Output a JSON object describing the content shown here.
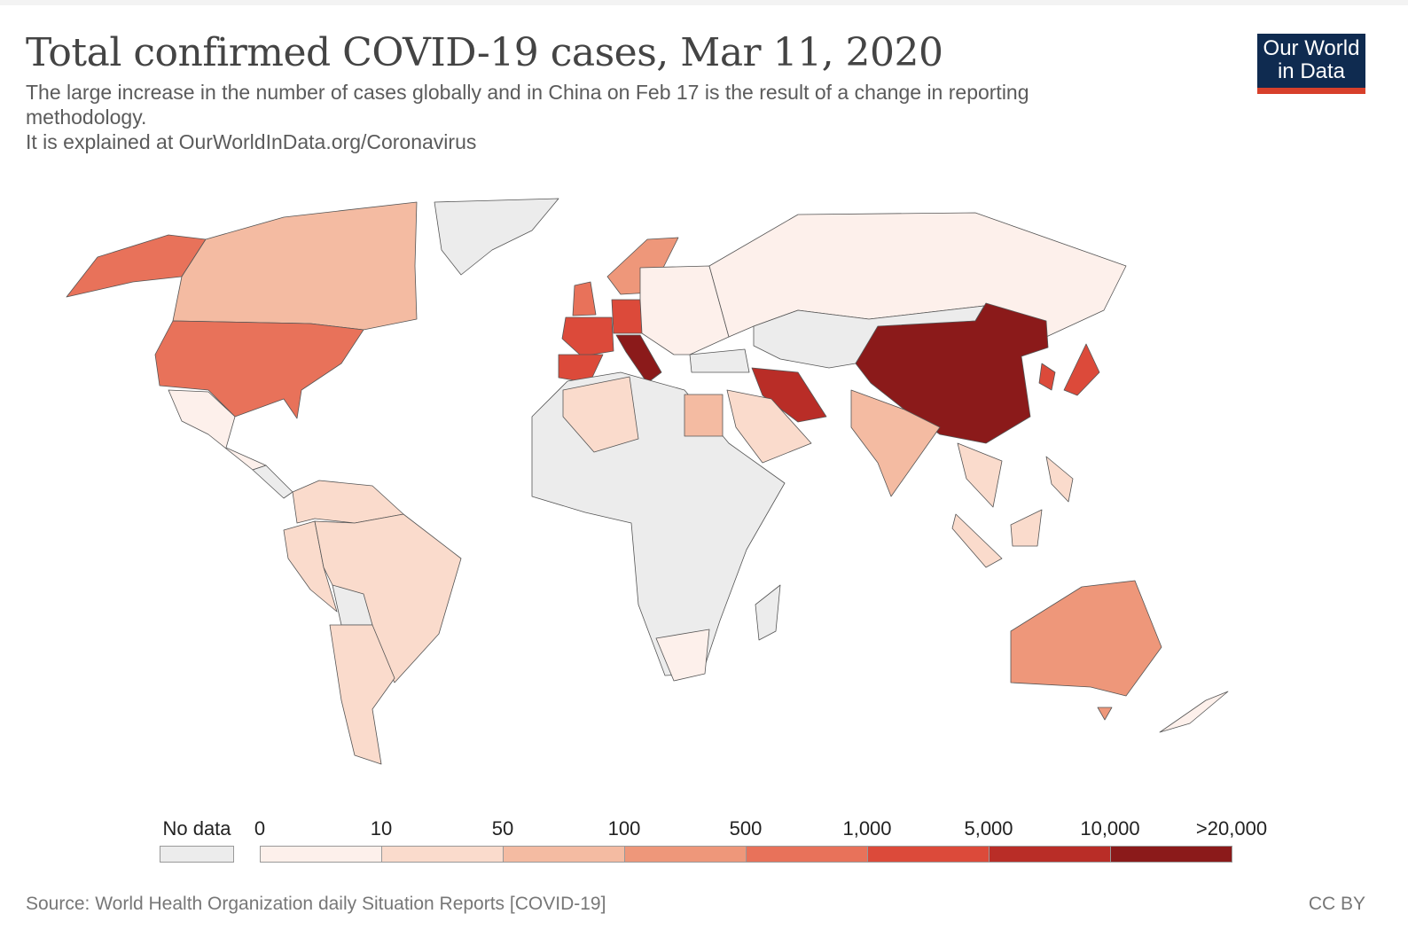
{
  "header": {
    "title": "Total confirmed COVID-19 cases, Mar 11, 2020",
    "subtitle_line1": "The large increase in the number of cases globally and in China on Feb 17 is the result of a change in reporting methodology.",
    "subtitle_line2": "It is explained at OurWorldInData.org/Coronavirus",
    "logo_line1": "Our World",
    "logo_line2": "in Data"
  },
  "legend": {
    "no_data_label": "No data",
    "no_data_color": "#ececec",
    "ticks": [
      "0",
      "10",
      "50",
      "100",
      "500",
      "1,000",
      "5,000",
      "10,000",
      ">20,000"
    ],
    "bin_colors": [
      "#fdf0eb",
      "#fadbcc",
      "#f4bba2",
      "#ee977a",
      "#e8725a",
      "#dc4a3a",
      "#b92d27",
      "#8b1a1a"
    ]
  },
  "map_fills": {
    "greenland": -1,
    "alaska": 4,
    "canada": 2,
    "usa": 4,
    "mexico": 0,
    "central-america": -1,
    "colombia-venezuela": 1,
    "peru": 1,
    "brazil": 1,
    "bolivia": -1,
    "argentina": 1,
    "scandinavia": 3,
    "uk": 4,
    "france": 5,
    "spain": 5,
    "germany": 5,
    "italy": 7,
    "eastern-europe": 0,
    "russia": 0,
    "central-asia": -1,
    "turkey": -1,
    "china": 7,
    "korea": 5,
    "japan": 5,
    "india": 2,
    "iran": 6,
    "arabia": 1,
    "egypt": 2,
    "africa": -1,
    "algeria": 1,
    "south-africa": 0,
    "madagascar": -1,
    "southeast-asia": 1,
    "sumatra": 1,
    "borneo": 1,
    "philippines": 1,
    "australia": 3,
    "tasmania": 3,
    "new-zealand": 0
  },
  "footer": {
    "source": "Source: World Health Organization daily Situation Reports [COVID-19]",
    "license": "CC BY"
  }
}
